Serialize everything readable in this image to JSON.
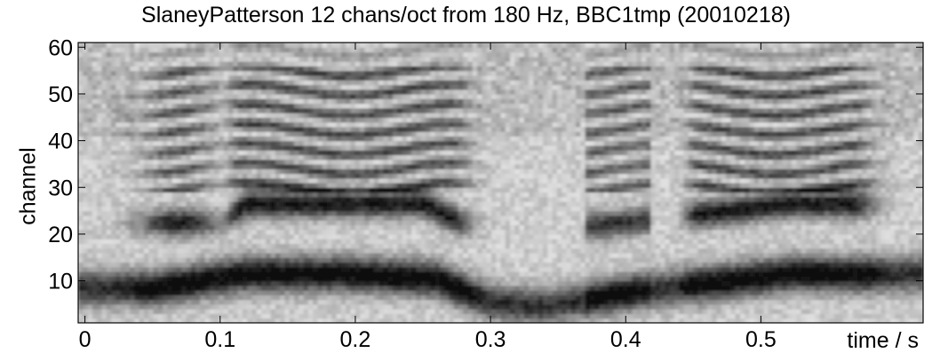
{
  "chart_data": {
    "type": "heatmap",
    "title": "SlaneyPatterson 12 chans/oct from 180 Hz, BBC1tmp (20010218)",
    "xlabel": "time / s",
    "ylabel": "channel",
    "xlim": [
      -0.005,
      0.62
    ],
    "ylim": [
      1,
      61
    ],
    "xticks": [
      0,
      0.1,
      0.2,
      0.3,
      0.4,
      0.5
    ],
    "xtick_labels": [
      "0",
      "0.1",
      "0.2",
      "0.3",
      "0.4",
      "0.5"
    ],
    "yticks": [
      10,
      20,
      30,
      40,
      50,
      60
    ],
    "ytick_labels": [
      "10",
      "20",
      "30",
      "40",
      "50",
      "60"
    ],
    "colormap": "gray-inverted",
    "grid": false
  }
}
